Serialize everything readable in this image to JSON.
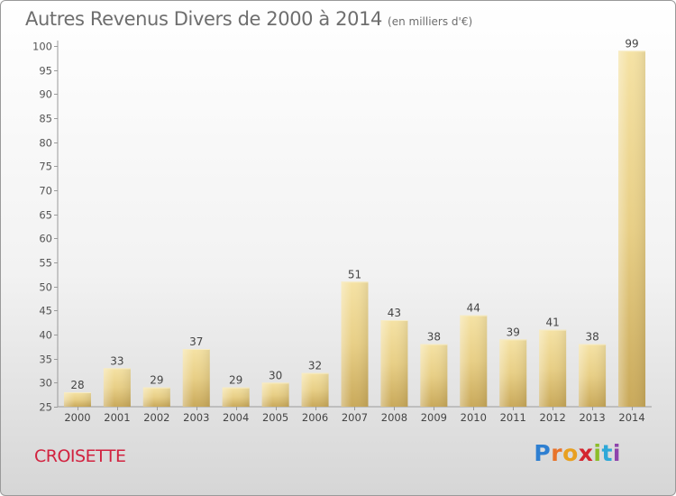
{
  "header": {
    "title": "Autres Revenus Divers de 2000 à 2014",
    "unit": "(en milliers d'€)"
  },
  "footer": {
    "place": "CROISETTE",
    "brand": "Proxiti",
    "brand_colors": [
      "#2e7fd1",
      "#e8732a",
      "#e8a020",
      "#d4262f",
      "#8cbd2a",
      "#2ea8d8",
      "#8e44ad"
    ]
  },
  "chart_data": {
    "type": "bar",
    "title": "Autres Revenus Divers de 2000 à 2014",
    "subtitle": "(en milliers d'€)",
    "xlabel": "",
    "ylabel": "",
    "categories": [
      "2000",
      "2001",
      "2002",
      "2003",
      "2004",
      "2005",
      "2006",
      "2007",
      "2008",
      "2009",
      "2010",
      "2011",
      "2012",
      "2013",
      "2014"
    ],
    "values": [
      28,
      33,
      29,
      37,
      29,
      30,
      32,
      51,
      43,
      38,
      44,
      39,
      41,
      38,
      99
    ],
    "ylim": [
      25,
      100
    ],
    "yticks": [
      25,
      30,
      35,
      40,
      45,
      50,
      55,
      60,
      65,
      70,
      75,
      80,
      85,
      90,
      95,
      100
    ],
    "grid": false,
    "bar_color": "#e8cf86",
    "bar_color_dark": "#c9a95a"
  }
}
